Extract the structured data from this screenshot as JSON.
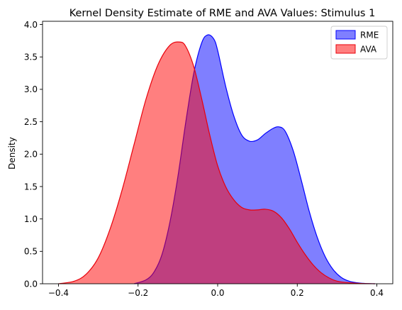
{
  "chart_data": {
    "type": "area",
    "title": "Kernel Density Estimate of RME and AVA Values: Stimulus 1",
    "xlabel": "",
    "ylabel": "Density",
    "xlim": [
      -0.44,
      0.44
    ],
    "ylim": [
      0,
      4.05
    ],
    "xticks": [
      -0.4,
      -0.2,
      0.0,
      0.2,
      0.4
    ],
    "xtick_labels": [
      "−0.4",
      "−0.2",
      "0.0",
      "0.2",
      "0.4"
    ],
    "yticks": [
      0,
      0.5,
      1.0,
      1.5,
      2.0,
      2.5,
      3.0,
      3.5,
      4.0
    ],
    "ytick_labels": [
      "0.0",
      "0.5",
      "1.0",
      "1.5",
      "2.0",
      "2.5",
      "3.0",
      "3.5",
      "4.0"
    ],
    "grid": false,
    "legend_position": "top-right",
    "series": [
      {
        "name": "RME",
        "fill_color": "#0000ff",
        "line_color": "#0000ff",
        "fill_opacity": 0.5,
        "x": [
          -0.21,
          -0.18,
          -0.16,
          -0.14,
          -0.12,
          -0.1,
          -0.08,
          -0.06,
          -0.04,
          -0.025,
          -0.01,
          0.0,
          0.02,
          0.04,
          0.06,
          0.08,
          0.1,
          0.12,
          0.14,
          0.155,
          0.17,
          0.19,
          0.21,
          0.23,
          0.25,
          0.27,
          0.29,
          0.31,
          0.33,
          0.35,
          0.37,
          0.395
        ],
        "y": [
          0.0,
          0.06,
          0.18,
          0.45,
          0.95,
          1.65,
          2.5,
          3.25,
          3.72,
          3.84,
          3.78,
          3.6,
          3.05,
          2.6,
          2.3,
          2.2,
          2.22,
          2.32,
          2.4,
          2.42,
          2.35,
          2.05,
          1.6,
          1.12,
          0.72,
          0.42,
          0.22,
          0.1,
          0.04,
          0.015,
          0.005,
          0.0
        ]
      },
      {
        "name": "AVA",
        "fill_color": "#ff0000",
        "line_color": "#e8000b",
        "fill_opacity": 0.5,
        "x": [
          -0.4,
          -0.36,
          -0.33,
          -0.3,
          -0.27,
          -0.24,
          -0.21,
          -0.18,
          -0.15,
          -0.12,
          -0.095,
          -0.08,
          -0.06,
          -0.04,
          -0.02,
          0.0,
          0.02,
          0.04,
          0.06,
          0.08,
          0.1,
          0.12,
          0.14,
          0.16,
          0.18,
          0.2,
          0.22,
          0.24,
          0.26,
          0.28,
          0.3,
          0.33,
          0.36,
          0.395
        ],
        "y": [
          0.0,
          0.04,
          0.15,
          0.4,
          0.85,
          1.45,
          2.15,
          2.85,
          3.38,
          3.68,
          3.73,
          3.66,
          3.35,
          2.85,
          2.3,
          1.82,
          1.5,
          1.3,
          1.18,
          1.14,
          1.14,
          1.15,
          1.12,
          1.02,
          0.85,
          0.64,
          0.45,
          0.29,
          0.17,
          0.09,
          0.04,
          0.015,
          0.004,
          0.0
        ]
      }
    ]
  }
}
